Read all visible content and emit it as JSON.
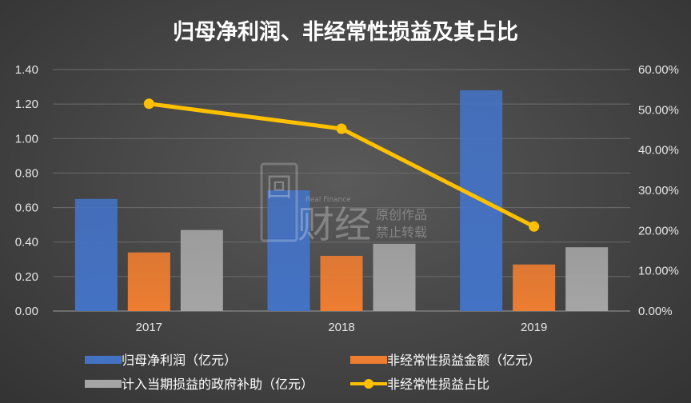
{
  "chart_data": {
    "type": "bar",
    "title": "归母净利润、非经常性损益及其占比",
    "categories": [
      "2017",
      "2018",
      "2019"
    ],
    "series": [
      {
        "name": "归母净利润（亿元）",
        "type": "bar",
        "axis": "left",
        "color": "#4472c4",
        "values": [
          0.65,
          0.7,
          1.28
        ]
      },
      {
        "name": "非经常性损益金额（亿元）",
        "type": "bar",
        "axis": "left",
        "color": "#ed7d31",
        "values": [
          0.34,
          0.32,
          0.27
        ]
      },
      {
        "name": "计入当期损益的政府补助（亿元）",
        "type": "bar",
        "axis": "left",
        "color": "#a5a5a5",
        "values": [
          0.47,
          0.39,
          0.37
        ]
      },
      {
        "name": "非经常性损益占比",
        "type": "line",
        "axis": "right",
        "color": "#ffc000",
        "values": [
          51.5,
          45.3,
          21.0
        ]
      }
    ],
    "ylim_left": [
      0,
      1.4
    ],
    "yticks_left": [
      "0.00",
      "0.20",
      "0.40",
      "0.60",
      "0.80",
      "1.00",
      "1.20",
      "1.40"
    ],
    "ylim_right": [
      0,
      60
    ],
    "yticks_right": [
      "0.00%",
      "10.00%",
      "20.00%",
      "30.00%",
      "40.00%",
      "50.00%",
      "60.00%"
    ],
    "grid": true,
    "legend_position": "bottom"
  },
  "watermark": {
    "logo_char": "回",
    "brand": "财经",
    "small_en": "Real Finance",
    "line1": "原创作品",
    "line2": "禁止转载"
  }
}
